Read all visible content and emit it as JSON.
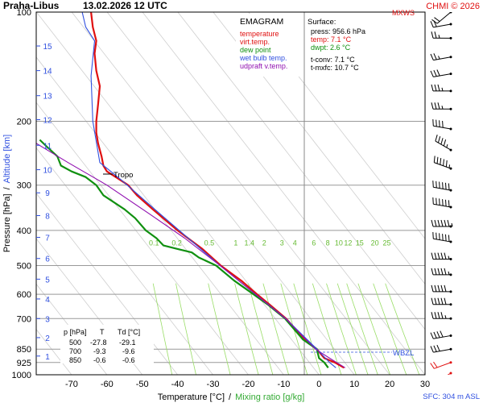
{
  "header": {
    "station": "Praha-Libus",
    "datetime": "13.02.2026 12 UTC",
    "copyright": "CHMI © 2026",
    "mxws": "MXWS"
  },
  "legend": {
    "title": "EMAGRAM",
    "items": [
      {
        "label": "temperature",
        "color": "#e01010"
      },
      {
        "label": "virt.temp.",
        "color": "#e01010"
      },
      {
        "label": "dew point",
        "color": "#109010"
      },
      {
        "label": "wet bulb temp.",
        "color": "#3050e0"
      },
      {
        "label": "udpraft v.temp.",
        "color": "#9010b0"
      }
    ]
  },
  "surface": {
    "title": "Surface:",
    "lines": [
      {
        "text": "press: 956.6 hPa",
        "color": "#000000"
      },
      {
        "text": "temp: 7.1 °C",
        "color": "#e01010"
      },
      {
        "text": "dwpt: 2.6 °C",
        "color": "#109010"
      }
    ],
    "extra": [
      {
        "text": "t-conv: 7.1 °C"
      },
      {
        "text": "t-mxfc: 10.7 °C"
      }
    ]
  },
  "table": {
    "header": [
      "p [hPa]",
      "T",
      "Td [°C]"
    ],
    "rows": [
      [
        "500",
        "-27.8",
        "-29.1"
      ],
      [
        "700",
        "-9.3",
        "-9.6"
      ],
      [
        "850",
        "-0.6",
        "-0.6"
      ]
    ]
  },
  "annotations": {
    "tropo": "Tropo",
    "wbzl": "WBZL",
    "sfc": "SFC: 304 m ASL"
  },
  "chart_data": {
    "type": "line",
    "xlabel": "Temperature [°C]",
    "xlabel_extra": "Mixing ratio [g/kg]",
    "xlabel_sep": "/",
    "ylabel": "Pressure [hPa]",
    "ylabel_extra": "Altitude [km]",
    "ylabel_sep": "/",
    "xlim": [
      -80,
      30
    ],
    "ylim": [
      1000,
      100
    ],
    "yscale": "log",
    "x_ticks": [
      -70,
      -60,
      -50,
      -40,
      -30,
      -20,
      -10,
      0,
      10,
      20,
      30
    ],
    "y_ticks": [
      100,
      200,
      300,
      400,
      500,
      600,
      700,
      850,
      925,
      1000
    ],
    "altitude_ticks": [
      {
        "km": 1,
        "p": 888
      },
      {
        "km": 2,
        "p": 790
      },
      {
        "km": 3,
        "p": 700
      },
      {
        "km": 4,
        "p": 618
      },
      {
        "km": 5,
        "p": 545
      },
      {
        "km": 6,
        "p": 478
      },
      {
        "km": 7,
        "p": 418
      },
      {
        "km": 8,
        "p": 364
      },
      {
        "km": 9,
        "p": 315
      },
      {
        "km": 10,
        "p": 272
      },
      {
        "km": 11,
        "p": 233
      },
      {
        "km": 12,
        "p": 198
      },
      {
        "km": 13,
        "p": 170
      },
      {
        "km": 14,
        "p": 145
      },
      {
        "km": 15,
        "p": 124
      }
    ],
    "mixing_ratio_labels": [
      "0.1",
      "0.2",
      "0.5",
      "1",
      "1.4",
      "2",
      "3",
      "4",
      "6",
      "8",
      "10",
      "12",
      "15",
      "20",
      "25"
    ],
    "mixing_ratio_values": [
      0.1,
      0.2,
      0.5,
      1,
      1.4,
      2,
      3,
      4,
      6,
      8,
      10,
      12,
      15,
      20,
      25
    ],
    "series": [
      {
        "name": "temperature",
        "color": "#e01010",
        "points": [
          [
            7.1,
            956.6
          ],
          [
            4.5,
            925
          ],
          [
            1.5,
            900
          ],
          [
            -0.6,
            850
          ],
          [
            -4,
            800
          ],
          [
            -9.3,
            700
          ],
          [
            -14,
            640
          ],
          [
            -17.5,
            600
          ],
          [
            -22,
            550
          ],
          [
            -27.8,
            500
          ],
          [
            -33,
            450
          ],
          [
            -40,
            400
          ],
          [
            -47,
            350
          ],
          [
            -51.5,
            320
          ],
          [
            -54,
            300
          ],
          [
            -57.5,
            285
          ],
          [
            -60,
            275
          ],
          [
            -61,
            265
          ],
          [
            -61.5,
            250
          ],
          [
            -62.5,
            230
          ],
          [
            -63,
            215
          ],
          [
            -63,
            200
          ],
          [
            -62.5,
            180
          ],
          [
            -62,
            160
          ],
          [
            -63,
            145
          ],
          [
            -63.5,
            130
          ],
          [
            -63,
            120
          ],
          [
            -64,
            110
          ],
          [
            -64.5,
            100
          ]
        ]
      },
      {
        "name": "dew point",
        "color": "#109010",
        "points": [
          [
            2.6,
            956.6
          ],
          [
            1.5,
            925
          ],
          [
            0,
            900
          ],
          [
            -0.6,
            850
          ],
          [
            -4.5,
            800
          ],
          [
            -9.6,
            700
          ],
          [
            -14.5,
            640
          ],
          [
            -18.5,
            600
          ],
          [
            -24,
            550
          ],
          [
            -29.1,
            500
          ],
          [
            -34,
            475
          ],
          [
            -36,
            460
          ],
          [
            -40,
            450
          ],
          [
            -44,
            440
          ],
          [
            -46,
            420
          ],
          [
            -49,
            400
          ],
          [
            -52,
            370
          ],
          [
            -55,
            350
          ],
          [
            -61,
            320
          ],
          [
            -63,
            300
          ],
          [
            -66,
            285
          ],
          [
            -70,
            275
          ],
          [
            -73,
            265
          ],
          [
            -74,
            250
          ],
          [
            -77,
            235
          ],
          [
            -79,
            225
          ]
        ]
      },
      {
        "name": "wet bulb temp.",
        "color": "#3050e0",
        "points": [
          [
            4.8,
            956.6
          ],
          [
            3,
            925
          ],
          [
            -0.6,
            850
          ],
          [
            -9.4,
            700
          ],
          [
            -28,
            500
          ],
          [
            -45,
            360
          ],
          [
            -56,
            290
          ],
          [
            -62,
            260
          ],
          [
            -64,
            200
          ],
          [
            -64.5,
            150
          ],
          [
            -63.5,
            120
          ],
          [
            -66,
            110
          ],
          [
            -67,
            100
          ]
        ]
      },
      {
        "name": "udpraft v.temp.",
        "color": "#9010b0",
        "points": [
          [
            7.4,
            956.6
          ],
          [
            3,
            900
          ],
          [
            -1,
            850
          ],
          [
            -9.5,
            700
          ],
          [
            -28,
            500
          ],
          [
            -38,
            420
          ],
          [
            -48,
            360
          ],
          [
            -60,
            300
          ],
          [
            -71,
            260
          ],
          [
            -80,
            230
          ]
        ]
      }
    ],
    "tropopause": {
      "p": 280,
      "t": -59
    },
    "wbzl": {
      "p": 860
    },
    "wind_barbs": [
      {
        "p": 990,
        "dir": 240,
        "kt": 10
      },
      {
        "p": 925,
        "dir": 250,
        "kt": 20
      },
      {
        "p": 850,
        "dir": 260,
        "kt": 30
      },
      {
        "p": 780,
        "dir": 260,
        "kt": 40
      },
      {
        "p": 700,
        "dir": 270,
        "kt": 45
      },
      {
        "p": 640,
        "dir": 270,
        "kt": 50
      },
      {
        "p": 590,
        "dir": 270,
        "kt": 50
      },
      {
        "p": 530,
        "dir": 270,
        "kt": 55
      },
      {
        "p": 480,
        "dir": 270,
        "kt": 55
      },
      {
        "p": 430,
        "dir": 280,
        "kt": 60
      },
      {
        "p": 390,
        "dir": 270,
        "kt": 65
      },
      {
        "p": 345,
        "dir": 280,
        "kt": 60
      },
      {
        "p": 310,
        "dir": 280,
        "kt": 60
      },
      {
        "p": 270,
        "dir": 290,
        "kt": 55
      },
      {
        "p": 240,
        "dir": 300,
        "kt": 45
      },
      {
        "p": 210,
        "dir": 280,
        "kt": 40
      },
      {
        "p": 185,
        "dir": 270,
        "kt": 35
      },
      {
        "p": 165,
        "dir": 270,
        "kt": 35
      },
      {
        "p": 148,
        "dir": 260,
        "kt": 30
      },
      {
        "p": 133,
        "dir": 260,
        "kt": 25
      },
      {
        "p": 118,
        "dir": 270,
        "kt": 25
      },
      {
        "p": 108,
        "dir": 260,
        "kt": 20
      },
      {
        "p": 100,
        "dir": 230,
        "kt": 20
      }
    ]
  }
}
